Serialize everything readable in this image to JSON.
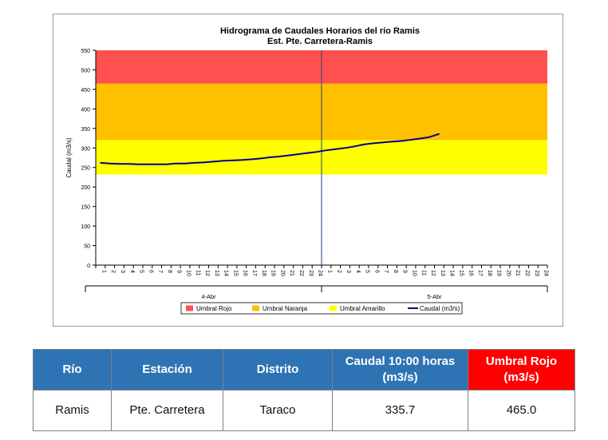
{
  "chart_data": {
    "type": "line",
    "title": "Hidrograma de Caudales Horarios del río Ramis",
    "subtitle": "Est. Pte. Carretera-Ramis",
    "ylabel": "Caudal  (m3/s)",
    "ylim": [
      0,
      550
    ],
    "yticks": [
      "0",
      "50",
      "100",
      "150",
      "200",
      "250",
      "300",
      "350",
      "400",
      "450",
      "500",
      "550"
    ],
    "x_tick_labels": [
      "1",
      "2",
      "3",
      "4",
      "5",
      "6",
      "7",
      "8",
      "9",
      "10",
      "11",
      "12",
      "13",
      "14",
      "15",
      "16",
      "17",
      "18",
      "19",
      "20",
      "21",
      "22",
      "23",
      "24",
      "1",
      "2",
      "3",
      "4",
      "5",
      "6",
      "7",
      "8",
      "9",
      "10",
      "11",
      "12",
      "13",
      "14",
      "15",
      "16",
      "17",
      "18",
      "19",
      "20",
      "21",
      "22",
      "23",
      "24"
    ],
    "day_labels": [
      "4-Abr",
      "5-Abr"
    ],
    "thresholds": [
      {
        "name": "Umbral Amarillo",
        "from": 232,
        "to": 320,
        "color": "#ffff00"
      },
      {
        "name": "Umbral Naranja",
        "from": 320,
        "to": 465,
        "color": "#ffc000"
      },
      {
        "name": "Umbral Rojo",
        "from": 465,
        "to": 550,
        "color": "#ff5050"
      }
    ],
    "series": [
      {
        "name": "Caudal (m3/s)",
        "color": "#00008b",
        "values": [
          262,
          260,
          259,
          259,
          258,
          258,
          258,
          258,
          260,
          260,
          262,
          263,
          265,
          267,
          268,
          269,
          271,
          273,
          276,
          278,
          281,
          284,
          287,
          290,
          294,
          297,
          300,
          304,
          309,
          312,
          314,
          316,
          318,
          321,
          324,
          328,
          336
        ]
      }
    ],
    "legend": [
      {
        "label": "Umbral Rojo",
        "color": "#ff5050",
        "kind": "box"
      },
      {
        "label": "Umbral Naranja",
        "color": "#ffc000",
        "kind": "box"
      },
      {
        "label": "Umbral Amarillo",
        "color": "#ffff00",
        "kind": "box"
      },
      {
        "label": "Caudal (m3/s)",
        "color": "#00008b",
        "kind": "line"
      }
    ],
    "legend_position": "bottom",
    "grid": false
  },
  "table": {
    "headers": [
      "Río",
      "Estación",
      "Distrito",
      "Caudal 10:00 horas (m3/s)",
      "Umbral Rojo (m3/s)"
    ],
    "row": [
      "Ramis",
      "Pte. Carretera",
      "Taraco",
      "335.7",
      "465.0"
    ]
  }
}
